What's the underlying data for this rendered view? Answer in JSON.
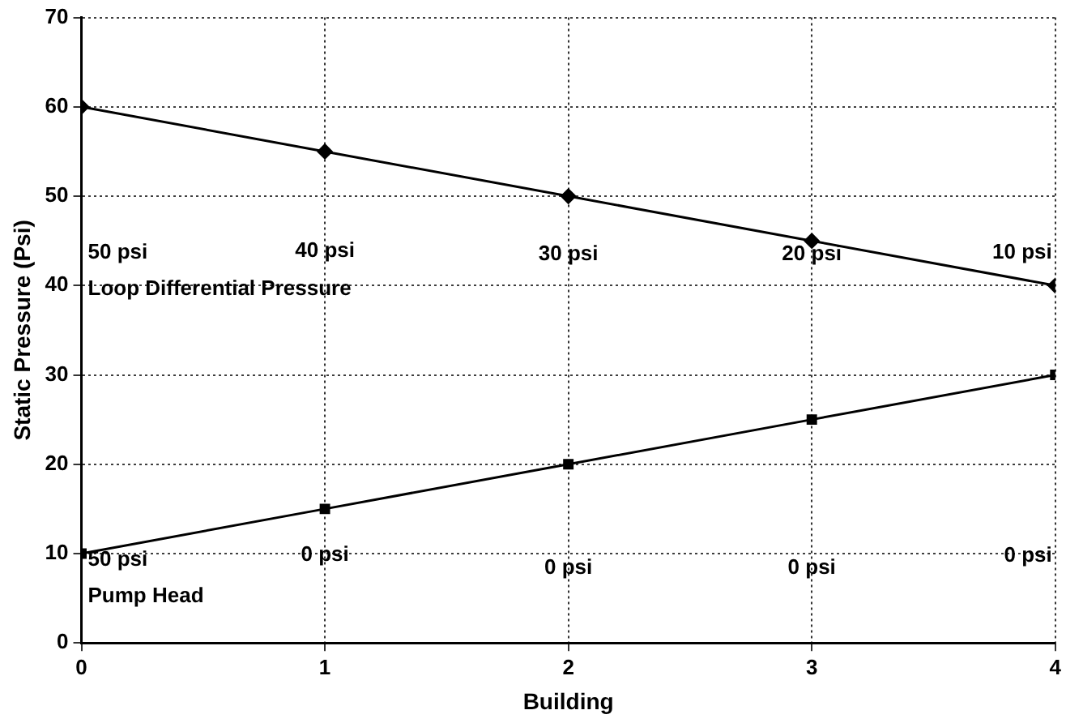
{
  "chart_data": {
    "type": "line",
    "xlabel": "Building",
    "ylabel": "Static Pressure (Psi)",
    "x": [
      0,
      1,
      2,
      3,
      4
    ],
    "series": [
      {
        "color": "#000000",
        "values": [
          60,
          55,
          50,
          45,
          40
        ],
        "marker": "diamond"
      },
      {
        "color": "#000000",
        "values": [
          10,
          15,
          20,
          25,
          30
        ],
        "marker": "square"
      }
    ],
    "xlim": [
      0,
      4
    ],
    "xticks": [
      0,
      1,
      2,
      3,
      4
    ],
    "ylim": [
      0,
      70
    ],
    "yticks": [
      0,
      10,
      20,
      30,
      40,
      50,
      60,
      70
    ],
    "grid": true,
    "line_style": "solid",
    "annotations": [
      "50 psi",
      "40 psi",
      "30 psi",
      "20 psi",
      "10 psi",
      "Loop Differential Pressure",
      "50 psi",
      "0 psi",
      "0 psi",
      "0 psi",
      "0 psi",
      "Pump Head"
    ]
  }
}
